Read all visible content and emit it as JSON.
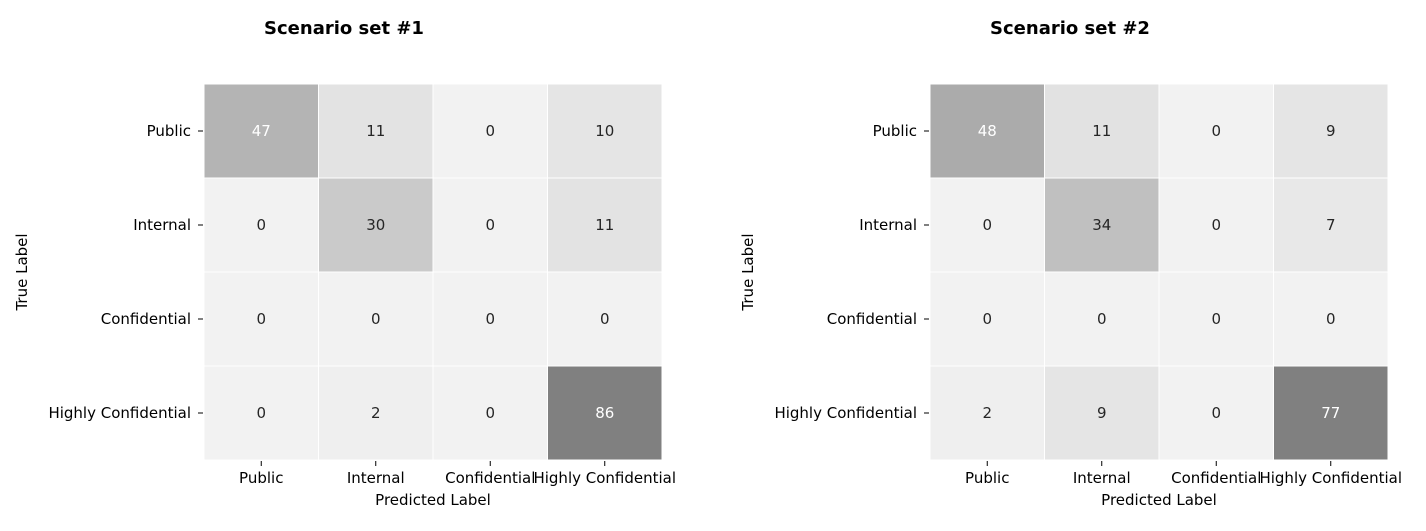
{
  "chart_data": [
    {
      "type": "heatmap",
      "title": "Scenario set #1",
      "xlabel": "Predicted Label",
      "ylabel": "True Label",
      "x_categories": [
        "Public",
        "Internal",
        "Confidential",
        "Highly Confidential"
      ],
      "y_categories": [
        "Public",
        "Internal",
        "Confidential",
        "Highly Confidential"
      ],
      "values": [
        [
          47,
          11,
          0,
          10
        ],
        [
          0,
          30,
          0,
          11
        ],
        [
          0,
          0,
          0,
          0
        ],
        [
          0,
          2,
          0,
          86
        ]
      ],
      "colormap": "greys",
      "colorbar": false
    },
    {
      "type": "heatmap",
      "title": "Scenario set #2",
      "xlabel": "Predicted Label",
      "ylabel": "True Label",
      "x_categories": [
        "Public",
        "Internal",
        "Confidential",
        "Highly Confidential"
      ],
      "y_categories": [
        "Public",
        "Internal",
        "Confidential",
        "Highly Confidential"
      ],
      "values": [
        [
          48,
          11,
          0,
          9
        ],
        [
          0,
          34,
          0,
          7
        ],
        [
          0,
          0,
          0,
          0
        ],
        [
          2,
          9,
          0,
          77
        ]
      ],
      "colormap": "greys",
      "colorbar": false
    }
  ]
}
